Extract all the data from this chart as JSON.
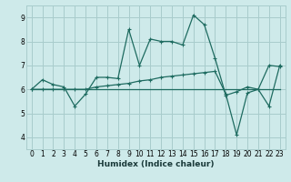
{
  "xlabel": "Humidex (Indice chaleur)",
  "background_color": "#ceeaea",
  "grid_color": "#a8cccc",
  "line_color": "#1e6b60",
  "xlim": [
    -0.5,
    23.5
  ],
  "ylim": [
    3.5,
    9.5
  ],
  "yticks": [
    4,
    5,
    6,
    7,
    8,
    9
  ],
  "xticks": [
    0,
    1,
    2,
    3,
    4,
    5,
    6,
    7,
    8,
    9,
    10,
    11,
    12,
    13,
    14,
    15,
    16,
    17,
    18,
    19,
    20,
    21,
    22,
    23
  ],
  "series": [
    {
      "x": [
        0,
        1,
        2,
        3,
        4,
        5,
        6,
        7,
        8,
        9,
        10,
        11,
        12,
        13,
        14,
        15,
        16,
        17,
        18,
        19,
        20,
        21,
        22,
        23
      ],
      "y": [
        6.0,
        6.4,
        6.2,
        6.1,
        5.3,
        5.8,
        6.5,
        6.5,
        6.45,
        8.5,
        7.0,
        8.1,
        8.0,
        8.0,
        7.85,
        9.1,
        8.7,
        7.3,
        5.75,
        5.9,
        6.1,
        6.0,
        7.0,
        6.95
      ],
      "marker": "+"
    },
    {
      "x": [
        0,
        1,
        2,
        3,
        4,
        5,
        6,
        7,
        8,
        9,
        10,
        11,
        12,
        13,
        14,
        15,
        16,
        17,
        18,
        19,
        20,
        21,
        22,
        23
      ],
      "y": [
        6.0,
        6.0,
        6.0,
        6.0,
        6.0,
        6.0,
        6.0,
        6.0,
        6.0,
        6.0,
        6.0,
        6.0,
        6.0,
        6.0,
        6.0,
        6.0,
        6.0,
        6.0,
        6.0,
        6.0,
        6.0,
        6.0,
        6.0,
        6.0
      ],
      "marker": null
    },
    {
      "x": [
        0,
        1,
        2,
        3,
        4,
        5,
        6,
        7,
        8,
        9,
        10,
        11,
        12,
        13,
        14,
        15,
        16,
        17,
        18,
        19,
        20,
        21,
        22,
        23
      ],
      "y": [
        6.0,
        6.0,
        6.0,
        6.0,
        6.0,
        6.0,
        6.1,
        6.15,
        6.2,
        6.25,
        6.35,
        6.4,
        6.5,
        6.55,
        6.6,
        6.65,
        6.7,
        6.75,
        5.8,
        4.1,
        5.85,
        6.0,
        5.3,
        7.0
      ],
      "marker": "+"
    }
  ]
}
